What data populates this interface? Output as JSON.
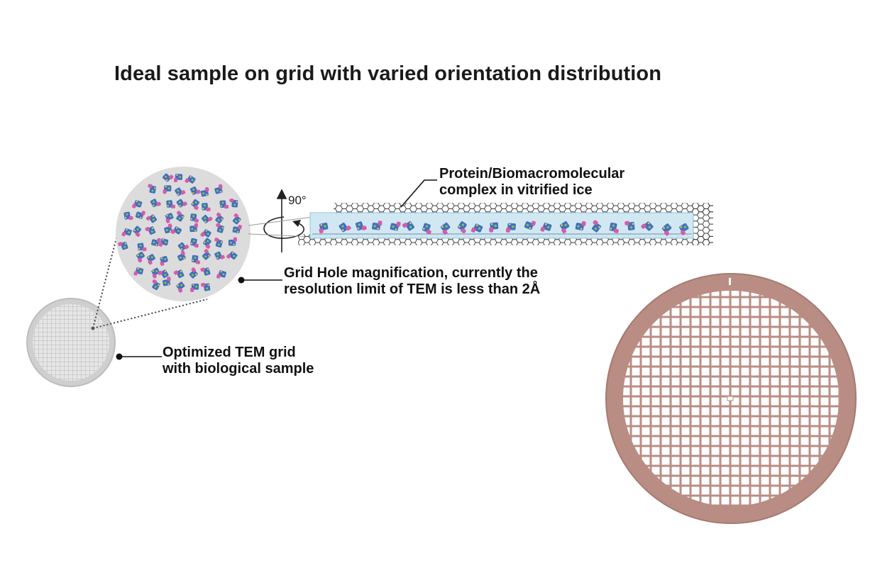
{
  "title": "Ideal sample on grid with varied orientation distribution",
  "labels": {
    "protein_complex": [
      "Protein/Biomacromolecular",
      "complex in vitrified ice"
    ],
    "grid_hole": [
      "Grid Hole magnification, currently the",
      "resolution limit of TEM is less than 2Å"
    ],
    "tem_grid": [
      "Optimized TEM grid",
      "with biological sample"
    ],
    "rotation_angle": "90°"
  },
  "colors": {
    "grid_copper": "#b98d84",
    "grid_copper_dark": "#9b6f66",
    "small_grid": "#dadada",
    "magnified_hole": "#dcdcdc",
    "ice": "#cfe7f3",
    "protein_blue": "#3f6fc2",
    "protein_pink": "#d45ca8",
    "protein_green": "#8bc34a"
  },
  "icons": [
    "rotation-arrow-icon",
    "graphene-lattice",
    "protein-particle"
  ]
}
